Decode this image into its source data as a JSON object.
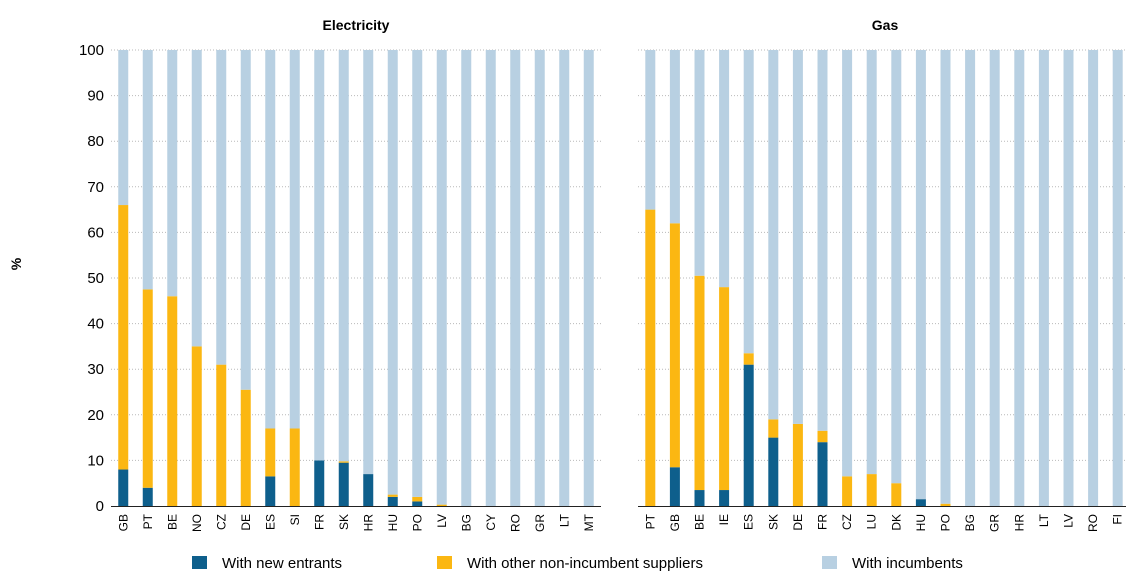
{
  "colors": {
    "new_entrants": "#0e5f8c",
    "other_non_incumbent": "#fbb712",
    "incumbents": "#b8d0e2"
  },
  "y_axis_label": "%",
  "legend": [
    {
      "key": "new_entrants",
      "label": "With new entrants"
    },
    {
      "key": "other_non_incumbent",
      "label": "With other non-incumbent suppliers"
    },
    {
      "key": "incumbents",
      "label": "With incumbents"
    }
  ],
  "chart_data": [
    {
      "type": "bar",
      "stacked": true,
      "title": "Electricity",
      "ylabel": "%",
      "ylim": [
        0,
        100
      ],
      "yticks": [
        0,
        10,
        20,
        30,
        40,
        50,
        60,
        70,
        80,
        90,
        100
      ],
      "grid": true,
      "legend_position": "bottom",
      "categories": [
        "GB",
        "PT",
        "BE",
        "NO",
        "CZ",
        "DE",
        "ES",
        "SI",
        "FR",
        "SK",
        "HR",
        "HU",
        "PO",
        "LV",
        "BG",
        "CY",
        "RO",
        "GR",
        "LT",
        "MT"
      ],
      "series": [
        {
          "name": "With new entrants",
          "values": [
            8,
            4,
            0,
            0,
            0,
            0,
            6.5,
            0,
            10,
            9.5,
            7,
            2,
            1,
            0,
            0,
            0,
            0,
            0,
            0,
            0
          ]
        },
        {
          "name": "With other non-incumbent suppliers",
          "values": [
            58,
            43.5,
            46,
            35,
            31,
            25.5,
            10.5,
            17,
            0,
            0.3,
            0,
            0.5,
            1,
            0.3,
            0,
            0,
            0,
            0,
            0,
            0
          ]
        },
        {
          "name": "With incumbents",
          "values": [
            34,
            52.5,
            54,
            65,
            69,
            74.5,
            83,
            83,
            90,
            90.2,
            93,
            97.5,
            98,
            99.7,
            100,
            100,
            100,
            100,
            100,
            100
          ]
        }
      ]
    },
    {
      "type": "bar",
      "stacked": true,
      "title": "Gas",
      "ylabel": "%",
      "ylim": [
        0,
        100
      ],
      "grid": true,
      "legend_position": "bottom",
      "categories": [
        "PT",
        "GB",
        "BE",
        "IE",
        "ES",
        "SK",
        "DE",
        "FR",
        "CZ",
        "LU",
        "DK",
        "HU",
        "PO",
        "BG",
        "GR",
        "HR",
        "LT",
        "LV",
        "RO",
        "FI"
      ],
      "series": [
        {
          "name": "With new entrants",
          "values": [
            0,
            8.5,
            3.5,
            3.5,
            31,
            15,
            0,
            14,
            0,
            0,
            0,
            1.5,
            0,
            0,
            0,
            0,
            0,
            0,
            0,
            0
          ]
        },
        {
          "name": "With other non-incumbent suppliers",
          "values": [
            65,
            53.5,
            47,
            44.5,
            2.5,
            4,
            18,
            2.5,
            6.5,
            7,
            5,
            0,
            0.5,
            0,
            0,
            0,
            0,
            0,
            0,
            0
          ]
        },
        {
          "name": "With incumbents",
          "values": [
            35,
            38,
            49.5,
            52,
            66.5,
            81,
            82,
            83.5,
            93.5,
            93,
            95,
            98.5,
            99.5,
            100,
            100,
            100,
            100,
            100,
            100,
            100
          ]
        }
      ]
    }
  ]
}
